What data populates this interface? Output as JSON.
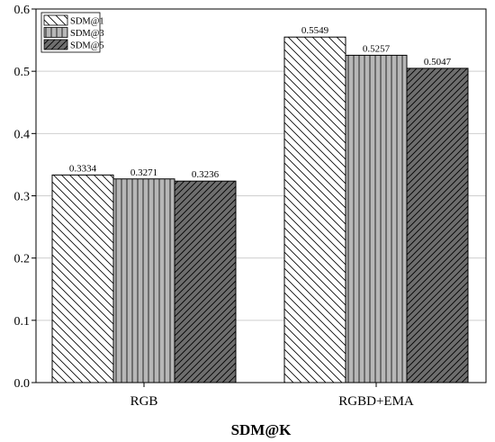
{
  "chart_data": {
    "type": "bar",
    "categories": [
      "RGB",
      "RGBD+EMA"
    ],
    "series": [
      {
        "name": "SDM@1",
        "values": [
          0.3334,
          0.5549
        ],
        "labels": [
          "0.3334",
          "0.5549"
        ],
        "fill": "#ffffff",
        "pattern": "back-diagonal"
      },
      {
        "name": "SDM@3",
        "values": [
          0.3271,
          0.5257
        ],
        "labels": [
          "0.3271",
          "0.5257"
        ],
        "fill": "#b7b7b7",
        "pattern": "vertical"
      },
      {
        "name": "SDM@5",
        "values": [
          0.3236,
          0.5047
        ],
        "labels": [
          "0.3236",
          "0.5047"
        ],
        "fill": "#6e6e6e",
        "pattern": "forward-diagonal"
      }
    ],
    "title": "",
    "xlabel": "SDM@K",
    "ylabel": "",
    "ylim": [
      0,
      0.6
    ],
    "yticks": [
      "0.0",
      "0.1",
      "0.2",
      "0.3",
      "0.4",
      "0.5",
      "0.6"
    ],
    "grid": true,
    "legend_position": "top-left"
  }
}
